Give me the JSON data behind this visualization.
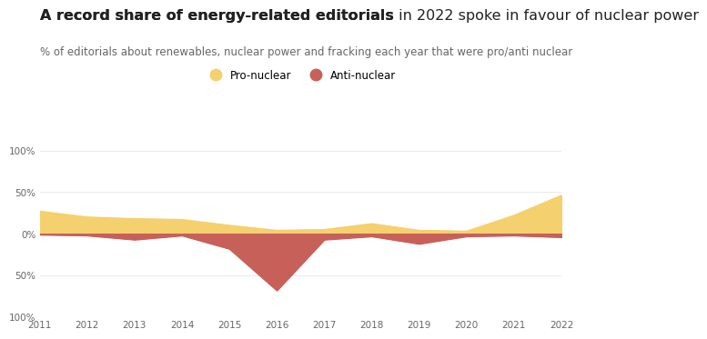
{
  "years": [
    2011,
    2012,
    2013,
    2014,
    2015,
    2016,
    2017,
    2018,
    2019,
    2020,
    2021,
    2022
  ],
  "pro_nuclear": [
    27,
    20,
    18,
    17,
    10,
    4,
    5,
    12,
    4,
    3,
    22,
    46
  ],
  "anti_nuclear": [
    -1,
    -2,
    -7,
    -2,
    -18,
    -68,
    -7,
    -3,
    -12,
    -3,
    -2,
    -4
  ],
  "pro_color": "#F5D06E",
  "anti_color": "#C8605A",
  "title_bold_part": "A record share of energy-related editorials",
  "title_normal_part": " in 2022 spoke in favour of nuclear power",
  "subtitle": "% of editorials about renewables, nuclear power and fracking each year that were pro/anti nuclear",
  "ylim": [
    -100,
    100
  ],
  "yticks": [
    -100,
    -50,
    0,
    50,
    100
  ],
  "ytick_labels": [
    "100%",
    "50%",
    "0%",
    "50%",
    "100%"
  ],
  "background_color": "#ffffff",
  "grid_color": "#e8e8e8",
  "legend_pro": "Pro-nuclear",
  "legend_anti": "Anti-nuclear",
  "title_fontsize": 11.5,
  "subtitle_fontsize": 8.5
}
